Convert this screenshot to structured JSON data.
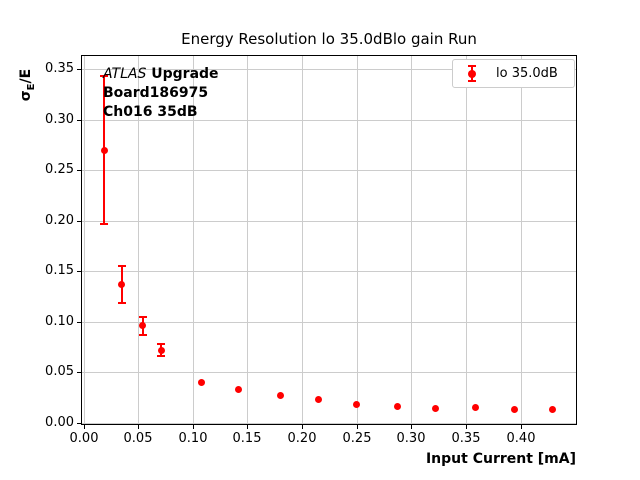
{
  "title": "Energy Resolution lo 35.0dBlo gain Run",
  "annotation": {
    "experiment": "ATLAS",
    "experiment_suffix": " Upgrade",
    "board": "Board186975",
    "channel": "Ch016 35dB"
  },
  "legend": {
    "label": "lo 35.0dB"
  },
  "axes": {
    "xlabel": "Input Current [mA]",
    "ylabel": {
      "sigma": "σ",
      "subscript": "E",
      "rest": "/E"
    },
    "x_tick_labels": [
      "0.00",
      "0.05",
      "0.10",
      "0.15",
      "0.20",
      "0.25",
      "0.30",
      "0.35",
      "0.40"
    ],
    "y_tick_labels": [
      "0.00",
      "0.05",
      "0.10",
      "0.15",
      "0.20",
      "0.25",
      "0.30",
      "0.35"
    ]
  },
  "colors": {
    "series": "#ff0000",
    "grid": "#cccccc",
    "spine": "#000000",
    "legend_border": "#cccccc",
    "background": "#ffffff"
  },
  "chart_data": {
    "type": "scatter",
    "title": "Energy Resolution lo 35.0dBlo gain Run",
    "xlabel": "Input Current [mA]",
    "ylabel": "σ_E/E",
    "xlim": [
      -0.0014,
      0.4506
    ],
    "ylim": [
      -0.001,
      0.363
    ],
    "x_ticks": [
      0,
      0.05,
      0.1,
      0.15,
      0.2,
      0.25,
      0.3,
      0.35,
      0.4
    ],
    "y_ticks": [
      0,
      0.05,
      0.1,
      0.15,
      0.2,
      0.25,
      0.3,
      0.35
    ],
    "grid": true,
    "legend_position": "upper right",
    "series": [
      {
        "name": "lo 35.0dB",
        "color": "#ff0000",
        "marker": "o",
        "x": [
          0.019,
          0.035,
          0.054,
          0.071,
          0.108,
          0.142,
          0.18,
          0.215,
          0.25,
          0.287,
          0.322,
          0.359,
          0.394,
          0.429
        ],
        "y": [
          0.27,
          0.137,
          0.096,
          0.072,
          0.04,
          0.033,
          0.027,
          0.023,
          0.018,
          0.016,
          0.014,
          0.015,
          0.013,
          0.013
        ],
        "yerr": [
          0.073,
          0.018,
          0.009,
          0.006,
          0,
          0,
          0,
          0,
          0,
          0,
          0,
          0,
          0,
          0
        ]
      }
    ]
  }
}
